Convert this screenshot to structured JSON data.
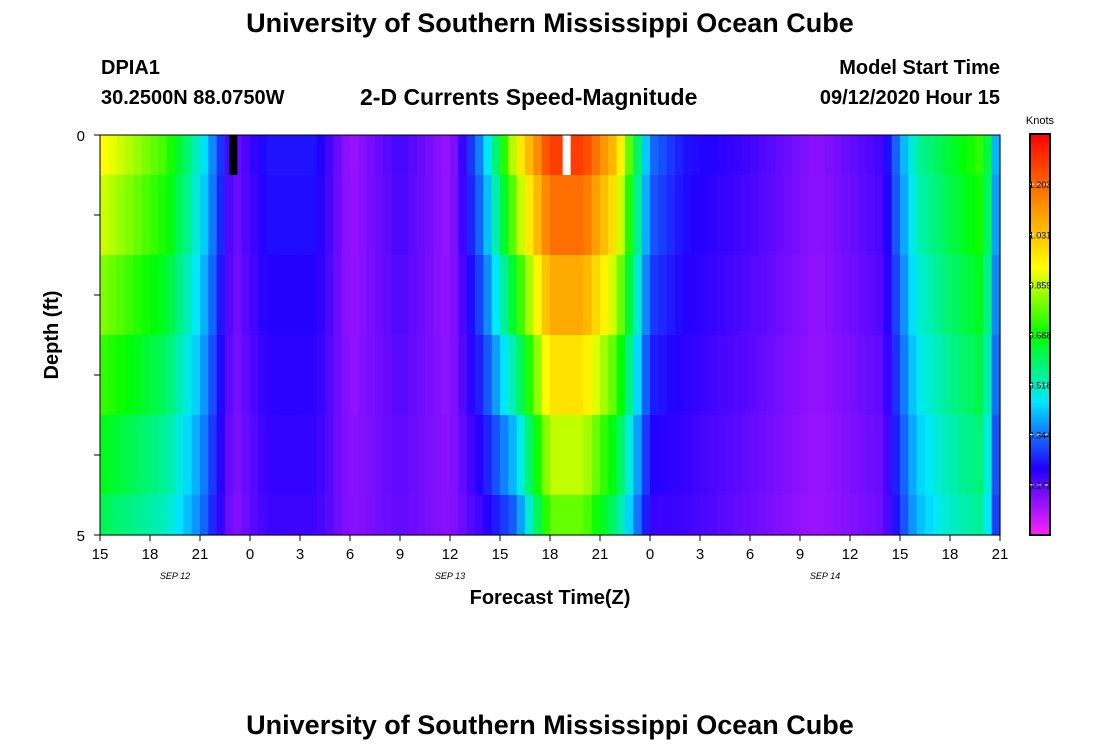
{
  "page": {
    "title": "University of Southern Mississippi Ocean Cube",
    "footer_title": "University of Southern Mississippi Ocean Cube",
    "station": "DPIA1",
    "coords": "30.2500N 88.0750W",
    "plot_title": "2-D Currents Speed-Magnitude",
    "model_start_label": "Model Start Time",
    "model_start_value": "09/12/2020 Hour 15"
  },
  "chart_data": {
    "type": "heatmap",
    "title": "2-D Currents Speed-Magnitude",
    "xlabel": "Forecast Time(Z)",
    "ylabel": "Depth (ft)",
    "y_ticks": [
      "0",
      "5"
    ],
    "ylim": [
      0,
      5
    ],
    "x_ticks": [
      "15",
      "18",
      "21",
      "0",
      "3",
      "6",
      "9",
      "12",
      "15",
      "18",
      "21",
      "0",
      "3",
      "6",
      "9",
      "12",
      "15",
      "18",
      "21"
    ],
    "date_labels": [
      "SEP 12",
      "SEP 13",
      "SEP 14"
    ],
    "colorbar": {
      "unit": "Knots",
      "ticks": [
        "0.172",
        "0.344",
        "0.516",
        "0.688",
        "0.859",
        "1.031",
        "1.203"
      ],
      "range": [
        0.0,
        1.375
      ]
    },
    "depths": [
      0.25,
      0.75,
      1.5,
      2.5,
      3.5,
      4.5
    ],
    "speed_profiles": [
      {
        "hour": 15,
        "surface": 0.95,
        "bottom": 0.6
      },
      {
        "hour": 17,
        "surface": 0.85,
        "bottom": 0.55
      },
      {
        "hour": 19,
        "surface": 0.75,
        "bottom": 0.5
      },
      {
        "hour": 21,
        "surface": 0.5,
        "bottom": 0.35
      },
      {
        "hour": 23,
        "surface": 0.15,
        "bottom": 0.12
      },
      {
        "hour": 25,
        "surface": 0.25,
        "bottom": 0.2
      },
      {
        "hour": 28,
        "surface": 0.25,
        "bottom": 0.2
      },
      {
        "hour": 30,
        "surface": 0.1,
        "bottom": 0.12
      },
      {
        "hour": 33,
        "surface": 0.2,
        "bottom": 0.16
      },
      {
        "hour": 36,
        "surface": 0.1,
        "bottom": 0.12
      },
      {
        "hour": 38,
        "surface": 0.4,
        "bottom": 0.2
      },
      {
        "hour": 40,
        "surface": 0.95,
        "bottom": 0.3
      },
      {
        "hour": 42,
        "surface": 1.3,
        "bottom": 0.75
      },
      {
        "hour": 44,
        "surface": 1.3,
        "bottom": 0.75
      },
      {
        "hour": 46,
        "surface": 1.05,
        "bottom": 0.55
      },
      {
        "hour": 48,
        "surface": 0.35,
        "bottom": 0.2
      },
      {
        "hour": 50,
        "surface": 0.25,
        "bottom": 0.2
      },
      {
        "hour": 54,
        "surface": 0.2,
        "bottom": 0.15
      },
      {
        "hour": 58,
        "surface": 0.12,
        "bottom": 0.1
      },
      {
        "hour": 62,
        "surface": 0.2,
        "bottom": 0.15
      },
      {
        "hour": 64,
        "surface": 0.55,
        "bottom": 0.4
      },
      {
        "hour": 66,
        "surface": 0.65,
        "bottom": 0.5
      },
      {
        "hour": 68,
        "surface": 0.75,
        "bottom": 0.55
      },
      {
        "hour": 69,
        "surface": 0.3,
        "bottom": 0.2
      }
    ],
    "missing_markers": [
      {
        "hour": 23,
        "color": "#000000"
      },
      {
        "hour": 43,
        "color": "#ffffff"
      }
    ],
    "colors": {
      "scale": [
        "#ff22ff",
        "#2200ff",
        "#00e8ff",
        "#00ff00",
        "#ffff00",
        "#ff8800",
        "#ff0000"
      ]
    }
  }
}
